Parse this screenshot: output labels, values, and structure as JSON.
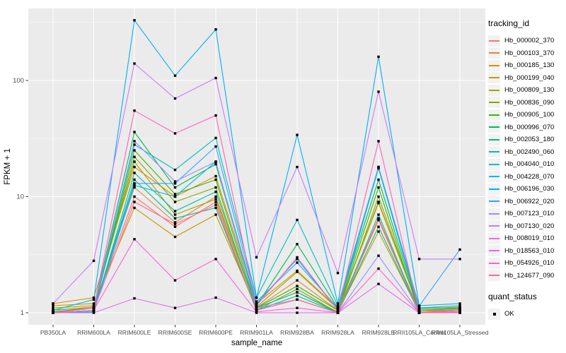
{
  "figure": {
    "background": "#FFFFFF"
  },
  "chart_data": {
    "type": "line",
    "title": "",
    "xlabel": "sample_name",
    "ylabel": "FPKM + 1",
    "yscale": "log10",
    "yticks": [
      1,
      10,
      100
    ],
    "yticks_minor": [
      3.1623,
      31.623,
      316.23
    ],
    "ylim": [
      0.77,
      415
    ],
    "grid": true,
    "legend_position": "right",
    "panel_bg": "#EBEBEB",
    "grid_color": "#FFFFFF",
    "tick_color": "#333333",
    "tick_label_color": "#4D4D4D",
    "axis_title_color": "#000000",
    "point_color": "#000000",
    "point_shape": "square",
    "categories": [
      "PB350LA",
      "RRIM600LA",
      "RRIM600LE",
      "RRIM600SE",
      "RRIM600PE",
      "RRIM901LA",
      "RRIM928BA",
      "RRIM928LA",
      "RRIM928LE",
      "RRII105LA_Control",
      "RRII105LA_Stressed"
    ],
    "series": [
      {
        "name": "Hb_000002_370",
        "color": "#F8766D",
        "values": [
          1.0,
          1.1,
          10.0,
          5.5,
          9.0,
          1.05,
          1.3,
          1.0,
          6.3,
          1.0,
          1.02
        ]
      },
      {
        "name": "Hb_000103_370",
        "color": "#EA8331",
        "values": [
          1.05,
          1.12,
          12.0,
          6.0,
          10.0,
          1.1,
          1.9,
          1.05,
          6.5,
          1.05,
          1.05
        ]
      },
      {
        "name": "Hb_000185_130",
        "color": "#D89000",
        "values": [
          1.2,
          1.35,
          18.0,
          10.0,
          15.0,
          1.2,
          2.3,
          1.1,
          9.0,
          1.1,
          1.1
        ]
      },
      {
        "name": "Hb_000199_040",
        "color": "#C09B00",
        "values": [
          1.15,
          1.2,
          8.0,
          4.5,
          7.0,
          1.1,
          1.5,
          1.02,
          5.0,
          1.02,
          1.06
        ]
      },
      {
        "name": "Hb_000809_130",
        "color": "#A3A500",
        "values": [
          1.1,
          1.15,
          20.0,
          7.0,
          9.5,
          1.12,
          2.25,
          1.08,
          8.8,
          1.08,
          1.12
        ]
      },
      {
        "name": "Hb_000836_090",
        "color": "#7CAE00",
        "values": [
          1.06,
          1.1,
          22.0,
          9.0,
          12.0,
          1.05,
          1.6,
          1.0,
          10.0,
          1.05,
          1.08
        ]
      },
      {
        "name": "Hb_000905_100",
        "color": "#39B600",
        "values": [
          1.0,
          1.05,
          25.0,
          10.5,
          14.0,
          1.1,
          1.7,
          1.05,
          12.0,
          1.0,
          1.05
        ]
      },
      {
        "name": "Hb_000996_070",
        "color": "#00BB4E",
        "values": [
          1.02,
          1.1,
          36.0,
          12.0,
          19.0,
          1.15,
          3.9,
          1.1,
          14.0,
          1.05,
          1.1
        ]
      },
      {
        "name": "Hb_002053_180",
        "color": "#00BF7D",
        "values": [
          1.0,
          1.05,
          14.0,
          6.5,
          8.0,
          1.05,
          1.4,
          1.0,
          5.5,
          1.0,
          1.02
        ]
      },
      {
        "name": "Hb_002490_060",
        "color": "#00C1A3",
        "values": [
          1.0,
          1.02,
          16.0,
          7.5,
          11.0,
          1.1,
          1.5,
          1.0,
          7.0,
          1.0,
          1.0
        ]
      },
      {
        "name": "Hb_004040_010",
        "color": "#00BFC4",
        "values": [
          1.0,
          1.05,
          28.0,
          17.0,
          32.0,
          1.35,
          6.3,
          1.15,
          18.0,
          1.1,
          1.15
        ]
      },
      {
        "name": "Hb_004228_070",
        "color": "#00BAE0",
        "values": [
          1.0,
          1.02,
          12.5,
          10.0,
          20.0,
          1.2,
          2.9,
          1.05,
          17.5,
          1.05,
          1.1
        ]
      },
      {
        "name": "Hb_006196_030",
        "color": "#00B0F6",
        "values": [
          1.05,
          1.3,
          330.0,
          110.0,
          275.0,
          1.35,
          34.0,
          1.2,
          160.0,
          1.15,
          1.2
        ]
      },
      {
        "name": "Hb_006922_020",
        "color": "#35A2FF",
        "values": [
          1.0,
          1.05,
          13.0,
          13.0,
          27.0,
          1.25,
          2.7,
          1.1,
          18.0,
          1.14,
          3.5
        ]
      },
      {
        "name": "Hb_007123_010",
        "color": "#9590FF",
        "values": [
          1.0,
          1.1,
          30.0,
          13.5,
          20.0,
          1.1,
          1.3,
          1.0,
          3.1,
          1.0,
          1.05
        ]
      },
      {
        "name": "Hb_007130_020",
        "color": "#C77CFF",
        "values": [
          1.2,
          2.8,
          140.0,
          70.0,
          105.0,
          3.0,
          18.0,
          2.2,
          80.0,
          2.9,
          2.9
        ]
      },
      {
        "name": "Hb_008019_010",
        "color": "#E76BF3",
        "values": [
          1.0,
          1.0,
          1.33,
          1.1,
          1.35,
          1.0,
          1.0,
          1.0,
          1.77,
          1.0,
          1.0
        ]
      },
      {
        "name": "Hb_018563_010",
        "color": "#FA62DB",
        "values": [
          1.0,
          1.05,
          4.3,
          1.9,
          2.9,
          1.02,
          1.1,
          1.0,
          2.4,
          1.0,
          1.0
        ]
      },
      {
        "name": "Hb_054926_010",
        "color": "#FF62BC",
        "values": [
          1.0,
          1.1,
          55.0,
          35.0,
          50.0,
          1.15,
          3.0,
          1.05,
          30.0,
          1.0,
          1.05
        ]
      },
      {
        "name": "Hb_124677_090",
        "color": "#FF6A98",
        "values": [
          1.0,
          1.05,
          9.0,
          5.8,
          8.5,
          1.05,
          1.3,
          1.0,
          6.3,
          1.0,
          1.02
        ]
      }
    ],
    "legend": {
      "title": "tracking_id"
    },
    "legend2": {
      "title": "quant_status",
      "items": [
        "OK"
      ]
    }
  }
}
